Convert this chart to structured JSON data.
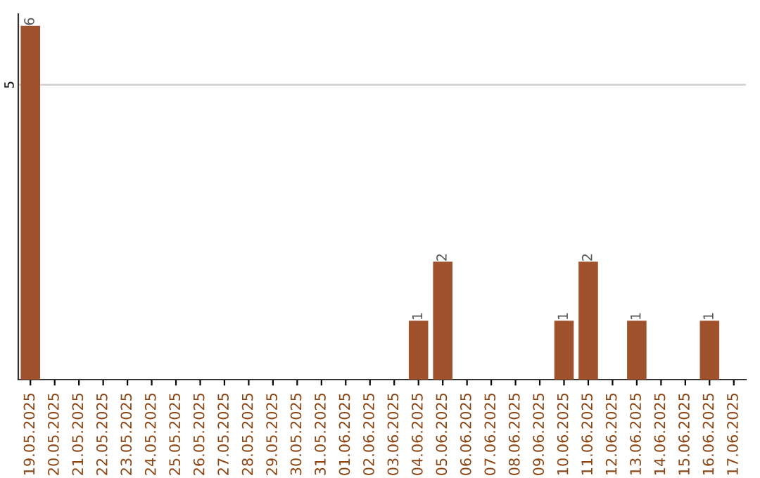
{
  "chart_data": {
    "type": "bar",
    "categories": [
      "19.05.2025",
      "20.05.2025",
      "21.05.2025",
      "22.05.2025",
      "23.05.2025",
      "24.05.2025",
      "25.05.2025",
      "26.05.2025",
      "27.05.2025",
      "28.05.2025",
      "29.05.2025",
      "30.05.2025",
      "31.05.2025",
      "01.06.2025",
      "02.06.2025",
      "03.06.2025",
      "04.06.2025",
      "05.06.2025",
      "06.06.2025",
      "07.06.2025",
      "08.06.2025",
      "09.06.2025",
      "10.06.2025",
      "11.06.2025",
      "12.06.2025",
      "13.06.2025",
      "14.06.2025",
      "15.06.2025",
      "16.06.2025",
      "17.06.2025"
    ],
    "values": [
      6,
      0,
      0,
      0,
      0,
      0,
      0,
      0,
      0,
      0,
      0,
      0,
      0,
      0,
      0,
      0,
      1,
      2,
      0,
      0,
      0,
      0,
      1,
      2,
      0,
      1,
      0,
      0,
      1,
      0
    ],
    "value_labels": [
      "6",
      null,
      null,
      null,
      null,
      null,
      null,
      null,
      null,
      null,
      null,
      null,
      null,
      null,
      null,
      null,
      "1",
      "2",
      null,
      null,
      null,
      null,
      "1",
      "2",
      null,
      "1",
      null,
      null,
      "1",
      null
    ],
    "color": "#a0522d",
    "ylim": [
      0,
      6.2
    ],
    "yticks": [
      5
    ],
    "grid": "y",
    "legend": false
  }
}
